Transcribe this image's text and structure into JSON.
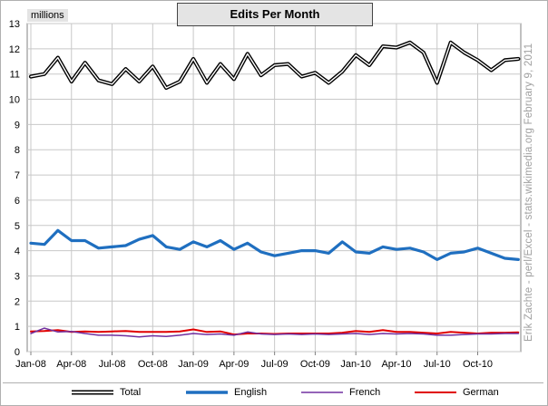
{
  "chart_data": {
    "type": "line",
    "title": "Edits Per Month",
    "units_label": "millions",
    "side_caption": "Erik Zachte  -  perl/Excel  -  stats.wikimedia.org          February 9, 2011",
    "ylim": [
      0,
      13
    ],
    "yticks": [
      0,
      1,
      2,
      3,
      4,
      5,
      6,
      7,
      8,
      9,
      10,
      11,
      12,
      13
    ],
    "x_tick_labels": [
      "Jan-08",
      "Apr-08",
      "Jul-08",
      "Oct-08",
      "Jan-09",
      "Apr-09",
      "Jul-09",
      "Oct-09",
      "Jan-10",
      "Apr-10",
      "Jul-10",
      "Oct-10"
    ],
    "x_tick_every": 3,
    "months": [
      "Jan-08",
      "Feb-08",
      "Mar-08",
      "Apr-08",
      "May-08",
      "Jun-08",
      "Jul-08",
      "Aug-08",
      "Sep-08",
      "Oct-08",
      "Nov-08",
      "Dec-08",
      "Jan-09",
      "Feb-09",
      "Mar-09",
      "Apr-09",
      "May-09",
      "Jun-09",
      "Jul-09",
      "Aug-09",
      "Sep-09",
      "Oct-09",
      "Nov-09",
      "Dec-09",
      "Jan-10",
      "Feb-10",
      "Mar-10",
      "Apr-10",
      "May-10",
      "Jun-10",
      "Jul-10",
      "Aug-10",
      "Sep-10",
      "Oct-10",
      "Nov-10",
      "Dec-10",
      "Jan-11"
    ],
    "series": [
      {
        "name": "Total",
        "style": "double",
        "color": "#000000",
        "values": [
          10.9,
          11.0,
          11.65,
          10.7,
          11.45,
          10.75,
          10.6,
          11.2,
          10.7,
          11.3,
          10.45,
          10.7,
          11.6,
          10.65,
          11.4,
          10.8,
          11.8,
          10.95,
          11.35,
          11.4,
          10.9,
          11.05,
          10.65,
          11.1,
          11.75,
          11.35,
          12.1,
          12.05,
          12.25,
          11.85,
          10.65,
          12.25,
          11.85,
          11.55,
          11.15,
          11.55,
          11.6
        ]
      },
      {
        "name": "English",
        "style": "thick",
        "color": "#1f6fc0",
        "values": [
          4.3,
          4.25,
          4.8,
          4.4,
          4.4,
          4.1,
          4.15,
          4.2,
          4.45,
          4.6,
          4.15,
          4.05,
          4.35,
          4.15,
          4.4,
          4.05,
          4.3,
          3.95,
          3.8,
          3.9,
          4.0,
          4.0,
          3.9,
          4.35,
          3.95,
          3.9,
          4.15,
          4.05,
          4.1,
          3.95,
          3.65,
          3.9,
          3.95,
          4.1,
          3.9,
          3.7,
          3.65
        ]
      },
      {
        "name": "French",
        "style": "thin",
        "color": "#7030a0",
        "values": [
          0.72,
          0.93,
          0.78,
          0.8,
          0.72,
          0.65,
          0.65,
          0.63,
          0.58,
          0.63,
          0.6,
          0.65,
          0.72,
          0.68,
          0.7,
          0.65,
          0.78,
          0.7,
          0.68,
          0.7,
          0.68,
          0.7,
          0.68,
          0.7,
          0.72,
          0.68,
          0.72,
          0.7,
          0.72,
          0.7,
          0.65,
          0.65,
          0.68,
          0.7,
          0.7,
          0.72,
          0.72
        ]
      },
      {
        "name": "German",
        "style": "medium",
        "color": "#e00000",
        "values": [
          0.8,
          0.82,
          0.85,
          0.78,
          0.8,
          0.78,
          0.8,
          0.82,
          0.78,
          0.78,
          0.78,
          0.8,
          0.88,
          0.78,
          0.8,
          0.68,
          0.72,
          0.72,
          0.7,
          0.72,
          0.72,
          0.72,
          0.72,
          0.75,
          0.82,
          0.78,
          0.85,
          0.78,
          0.78,
          0.75,
          0.72,
          0.78,
          0.75,
          0.72,
          0.75,
          0.75,
          0.76
        ]
      }
    ]
  }
}
